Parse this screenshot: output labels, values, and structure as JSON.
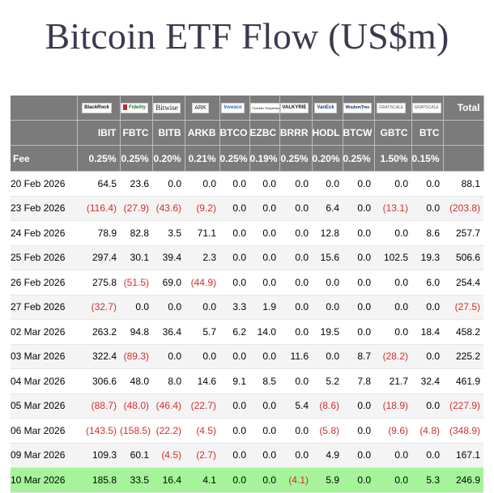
{
  "title": "Bitcoin ETF Flow (US$m)",
  "colors": {
    "header_bg": "#7b7b7b",
    "negative": "#d32f2f",
    "highlight_row": "#a5f49a",
    "title": "#3a3a4f"
  },
  "issuers": [
    "BlackRock",
    "Fidelity",
    "Bitwise",
    "ARK",
    "Invesco",
    "Franklin Templeton",
    "VALKYRIE",
    "VanEck",
    "WisdomTree",
    "GRAYSCALE",
    "GRAYSCALE"
  ],
  "total_label": "Total",
  "tickers": [
    "IBIT",
    "FBTC",
    "BITB",
    "ARKB",
    "BTCO",
    "EZBC",
    "BRRR",
    "HODL",
    "BTCW",
    "GBTC",
    "BTC"
  ],
  "fee_label": "Fee",
  "fees": [
    "0.25%",
    "0.25%",
    "0.20%",
    "0.21%",
    "0.25%",
    "0.19%",
    "0.25%",
    "0.20%",
    "0.25%",
    "1.50%",
    "0.15%"
  ],
  "rows": [
    {
      "date": "20 Feb 2026",
      "values": [
        "64.5",
        "23.6",
        "0.0",
        "0.0",
        "0.0",
        "0.0",
        "0.0",
        "0.0",
        "0.0",
        "0.0",
        "0.0"
      ],
      "total": "88.1"
    },
    {
      "date": "23 Feb 2026",
      "values": [
        "(116.4)",
        "(27.9)",
        "(43.6)",
        "(9.2)",
        "0.0",
        "0.0",
        "0.0",
        "6.4",
        "0.0",
        "(13.1)",
        "0.0"
      ],
      "total": "(203.8)"
    },
    {
      "date": "24 Feb 2026",
      "values": [
        "78.9",
        "82.8",
        "3.5",
        "71.1",
        "0.0",
        "0.0",
        "0.0",
        "12.8",
        "0.0",
        "0.0",
        "8.6"
      ],
      "total": "257.7"
    },
    {
      "date": "25 Feb 2026",
      "values": [
        "297.4",
        "30.1",
        "39.4",
        "2.3",
        "0.0",
        "0.0",
        "0.0",
        "15.6",
        "0.0",
        "102.5",
        "19.3"
      ],
      "total": "506.6"
    },
    {
      "date": "26 Feb 2026",
      "values": [
        "275.8",
        "(51.5)",
        "69.0",
        "(44.9)",
        "0.0",
        "0.0",
        "0.0",
        "0.0",
        "0.0",
        "0.0",
        "6.0"
      ],
      "total": "254.4"
    },
    {
      "date": "27 Feb 2026",
      "values": [
        "(32.7)",
        "0.0",
        "0.0",
        "0.0",
        "3.3",
        "1.9",
        "0.0",
        "0.0",
        "0.0",
        "0.0",
        "0.0"
      ],
      "total": "(27.5)"
    },
    {
      "date": "02 Mar 2026",
      "values": [
        "263.2",
        "94.8",
        "36.4",
        "5.7",
        "6.2",
        "14.0",
        "0.0",
        "19.5",
        "0.0",
        "0.0",
        "18.4"
      ],
      "total": "458.2"
    },
    {
      "date": "03 Mar 2026",
      "values": [
        "322.4",
        "(89.3)",
        "0.0",
        "0.0",
        "0.0",
        "0.0",
        "11.6",
        "0.0",
        "8.7",
        "(28.2)",
        "0.0"
      ],
      "total": "225.2"
    },
    {
      "date": "04 Mar 2026",
      "values": [
        "306.6",
        "48.0",
        "8.0",
        "14.6",
        "9.1",
        "8.5",
        "0.0",
        "5.2",
        "7.8",
        "21.7",
        "32.4"
      ],
      "total": "461.9"
    },
    {
      "date": "05 Mar 2026",
      "values": [
        "(88.7)",
        "(48.0)",
        "(46.4)",
        "(22.7)",
        "0.0",
        "0.0",
        "5.4",
        "(8.6)",
        "0.0",
        "(18.9)",
        "0.0"
      ],
      "total": "(227.9)"
    },
    {
      "date": "06 Mar 2026",
      "values": [
        "(143.5)",
        "(158.5)",
        "(22.2)",
        "(4.5)",
        "0.0",
        "0.0",
        "0.0",
        "(5.8)",
        "0.0",
        "(9.6)",
        "(4.8)"
      ],
      "total": "(348.9)"
    },
    {
      "date": "09 Mar 2026",
      "values": [
        "109.3",
        "60.1",
        "(4.5)",
        "(2.7)",
        "0.0",
        "0.0",
        "0.0",
        "4.9",
        "0.0",
        "0.0",
        "0.0"
      ],
      "total": "167.1"
    },
    {
      "date": "10 Mar 2026",
      "values": [
        "185.8",
        "33.5",
        "16.4",
        "4.1",
        "0.0",
        "0.0",
        "(4.1)",
        "5.9",
        "0.0",
        "0.0",
        "5.3"
      ],
      "total": "246.9"
    }
  ]
}
